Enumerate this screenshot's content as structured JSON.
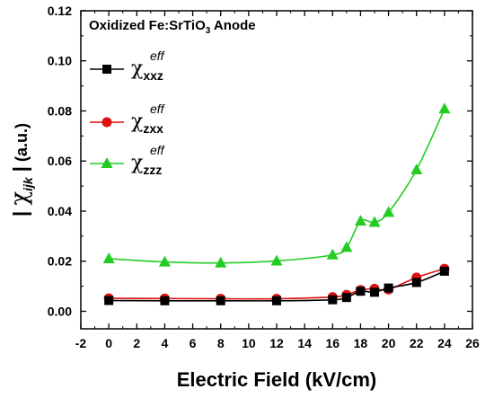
{
  "chart_data": {
    "type": "line",
    "title_parts": {
      "pre": "Oxidized Fe:SrTiO",
      "sub": "3",
      "post": " Anode"
    },
    "xlabel": "Electric Field (kV/cm)",
    "ylabel_parts": {
      "bar_left": "|",
      "chi": "χ",
      "sub": "ijk",
      "bar_right": "|",
      "unit": "(a.u.)"
    },
    "xlim": [
      -2,
      26
    ],
    "ylim": [
      -0.007,
      0.12
    ],
    "x_ticks": [
      "-2",
      "0",
      "2",
      "4",
      "6",
      "8",
      "10",
      "12",
      "14",
      "16",
      "18",
      "20",
      "22",
      "24",
      "26"
    ],
    "y_ticks": [
      "0.00",
      "0.02",
      "0.04",
      "0.06",
      "0.08",
      "0.10",
      "0.12"
    ],
    "x_tick_values": [
      -2,
      0,
      2,
      4,
      6,
      8,
      10,
      12,
      14,
      16,
      18,
      20,
      22,
      24,
      26
    ],
    "y_tick_values": [
      0,
      0.02,
      0.04,
      0.06,
      0.08,
      0.1,
      0.12
    ],
    "x": [
      0,
      4,
      8,
      12,
      16,
      17,
      18,
      19,
      20,
      22,
      24
    ],
    "legend_position": "top-left",
    "series": [
      {
        "name": "χ_xxz^eff",
        "chi": "χ",
        "sup": "eff",
        "sub": "xxz",
        "color": "#000000",
        "marker": "square",
        "values": [
          0.0043,
          0.0042,
          0.0042,
          0.0042,
          0.0046,
          0.0055,
          0.008,
          0.0076,
          0.0093,
          0.0115,
          0.016
        ]
      },
      {
        "name": "χ_zxx^eff",
        "chi": "χ",
        "sup": "eff",
        "sub": "zxx",
        "color": "#dd1111",
        "marker": "circle",
        "values": [
          0.0052,
          0.0051,
          0.005,
          0.005,
          0.0057,
          0.0066,
          0.0085,
          0.009,
          0.0087,
          0.0135,
          0.017
        ]
      },
      {
        "name": "χ_zzz^eff",
        "chi": "χ",
        "sup": "eff",
        "sub": "zzz",
        "color": "#22cc22",
        "marker": "triangle",
        "values": [
          0.021,
          0.0197,
          0.0193,
          0.0201,
          0.0225,
          0.0255,
          0.036,
          0.0355,
          0.0395,
          0.0565,
          0.0808
        ]
      }
    ]
  }
}
